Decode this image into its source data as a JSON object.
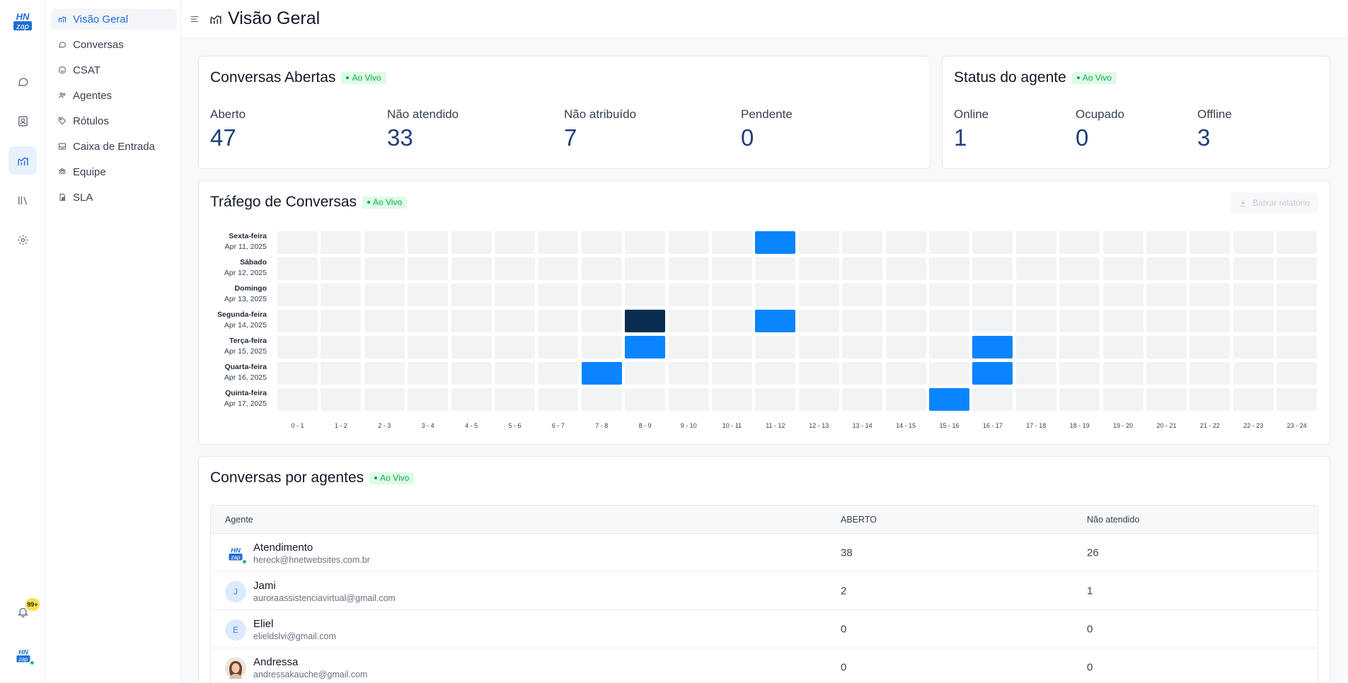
{
  "app": {
    "brand_top": "HN",
    "brand_bottom": "zap",
    "notification_badge": "99+"
  },
  "rail": {
    "items": [
      {
        "icon": "chat-bubble-icon"
      },
      {
        "icon": "contacts-icon"
      },
      {
        "icon": "reports-chart-icon",
        "active": true
      },
      {
        "icon": "library-icon"
      },
      {
        "icon": "settings-gear-icon"
      }
    ]
  },
  "sidebar": {
    "items": [
      {
        "label": "Visão Geral",
        "icon": "chart-line-icon",
        "active": true
      },
      {
        "label": "Conversas",
        "icon": "chat-icon"
      },
      {
        "label": "CSAT",
        "icon": "smile-icon"
      },
      {
        "label": "Agentes",
        "icon": "people-icon"
      },
      {
        "label": "Rótulos",
        "icon": "tag-icon"
      },
      {
        "label": "Caixa de Entrada",
        "icon": "inbox-icon"
      },
      {
        "label": "Equipe",
        "icon": "team-icon"
      },
      {
        "label": "SLA",
        "icon": "sla-file-icon"
      }
    ]
  },
  "header": {
    "title": "Visão Geral"
  },
  "open_conversations": {
    "title": "Conversas Abertas",
    "live": "Ao Vivo",
    "metrics": [
      {
        "label": "Aberto",
        "value": "47"
      },
      {
        "label": "Não atendido",
        "value": "33"
      },
      {
        "label": "Não atribuído",
        "value": "7"
      },
      {
        "label": "Pendente",
        "value": "0"
      }
    ]
  },
  "agent_status": {
    "title": "Status do agente",
    "live": "Ao Vivo",
    "metrics": [
      {
        "label": "Online",
        "value": "1"
      },
      {
        "label": "Ocupado",
        "value": "0"
      },
      {
        "label": "Offline",
        "value": "3"
      }
    ]
  },
  "traffic": {
    "title": "Tráfego de Conversas",
    "live": "Ao Vivo",
    "download_label": "Baixar relatório",
    "rows": [
      {
        "day": "Sexta-feira",
        "date": "Apr 11, 2025"
      },
      {
        "day": "Sábado",
        "date": "Apr 12, 2025"
      },
      {
        "day": "Domingo",
        "date": "Apr 13, 2025"
      },
      {
        "day": "Segunda-feira",
        "date": "Apr 14, 2025"
      },
      {
        "day": "Terça-feira",
        "date": "Apr 15, 2025"
      },
      {
        "day": "Quarta-feira",
        "date": "Apr 16, 2025"
      },
      {
        "day": "Quinta-feira",
        "date": "Apr 17, 2025"
      }
    ],
    "hours": [
      "0 - 1",
      "1 - 2",
      "2 - 3",
      "3 - 4",
      "4 - 5",
      "5 - 6",
      "6 - 7",
      "7 - 8",
      "8 - 9",
      "9 - 10",
      "10 - 11",
      "11 - 12",
      "12 - 13",
      "13 - 14",
      "14 - 15",
      "15 - 16",
      "16 - 17",
      "17 - 18",
      "18 - 19",
      "19 - 20",
      "20 - 21",
      "21 - 22",
      "22 - 23",
      "23 - 24"
    ],
    "highlighted_cells": [
      {
        "row": 0,
        "col": 11,
        "level": 1
      },
      {
        "row": 3,
        "col": 8,
        "level": 2
      },
      {
        "row": 3,
        "col": 11,
        "level": 1
      },
      {
        "row": 4,
        "col": 8,
        "level": 1
      },
      {
        "row": 4,
        "col": 16,
        "level": 1
      },
      {
        "row": 5,
        "col": 7,
        "level": 1
      },
      {
        "row": 5,
        "col": 16,
        "level": 1
      },
      {
        "row": 6,
        "col": 15,
        "level": 1
      }
    ],
    "colors": {
      "empty": "#f2f3f5",
      "level1": "#0a84ff",
      "level2": "#0a2e52"
    }
  },
  "agents_table": {
    "title": "Conversas por agentes",
    "live": "Ao Vivo",
    "headers": {
      "agent": "Agente",
      "open": "ABERTO",
      "unanswered": "Não atendido"
    },
    "rows": [
      {
        "name": "Atendimento",
        "email": "hereck@hnetwebsites.com.br",
        "avatar": "logo",
        "online": true,
        "open": "38",
        "unanswered": "26"
      },
      {
        "name": "Jami",
        "email": "auroraassistenciavirtual@gmail.com",
        "avatar": "J",
        "online": false,
        "open": "2",
        "unanswered": "1"
      },
      {
        "name": "Eliel",
        "email": "elieldslvi@gmail.com",
        "avatar": "E",
        "online": false,
        "open": "0",
        "unanswered": "0"
      },
      {
        "name": "Andressa",
        "email": "andressakauche@gmail.com",
        "avatar": "photo",
        "online": false,
        "open": "0",
        "unanswered": "0"
      }
    ]
  }
}
